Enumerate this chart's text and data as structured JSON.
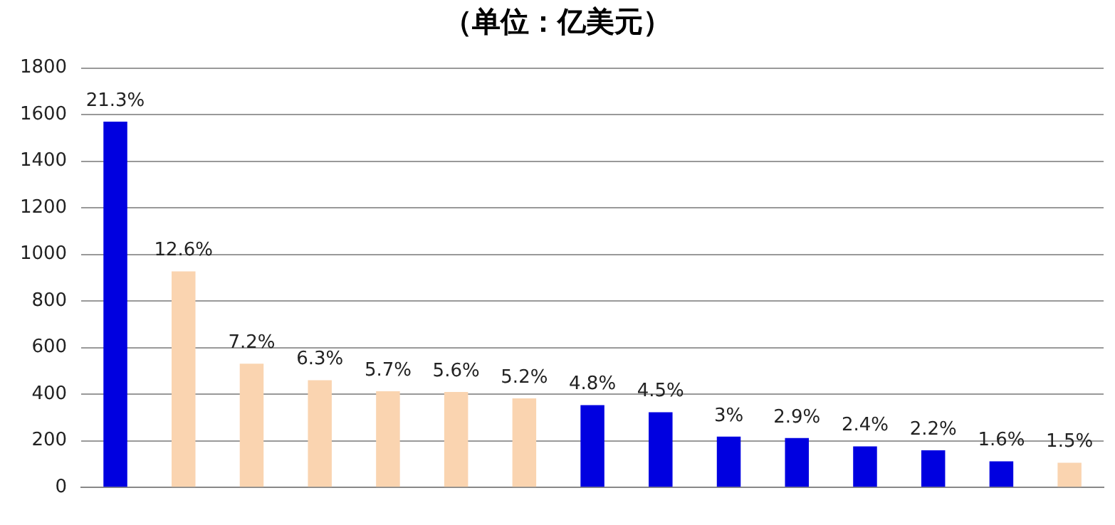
{
  "chart_data": {
    "type": "bar",
    "title": "（单位：亿美元）",
    "categories": [
      null,
      null,
      null,
      null,
      null,
      null,
      null,
      null,
      null,
      null,
      null,
      null,
      null,
      null,
      null
    ],
    "values": [
      1570,
      927,
      531,
      460,
      413,
      410,
      382,
      353,
      323,
      218,
      212,
      176,
      159,
      112,
      106
    ],
    "colors": [
      "#0000e0",
      "#fad4b0",
      "#fad4b0",
      "#fad4b0",
      "#fad4b0",
      "#fad4b0",
      "#fad4b0",
      "#0000e0",
      "#0000e0",
      "#0000e0",
      "#0000e0",
      "#0000e0",
      "#0000e0",
      "#0000e0",
      "#fad4b0"
    ],
    "annotations": [
      "21.3%",
      "12.6%",
      "7.2%",
      "6.3%",
      "5.7%",
      "5.6%",
      "5.2%",
      "4.8%",
      "4.5%",
      "3%",
      "2.9%",
      "2.4%",
      "2.2%",
      "1.6%",
      "1.5%"
    ],
    "ylim": [
      0,
      1800
    ],
    "yticks": [
      0,
      200,
      400,
      600,
      800,
      1000,
      1200,
      1400,
      1600,
      1800
    ],
    "grid": "y",
    "legend": false
  }
}
